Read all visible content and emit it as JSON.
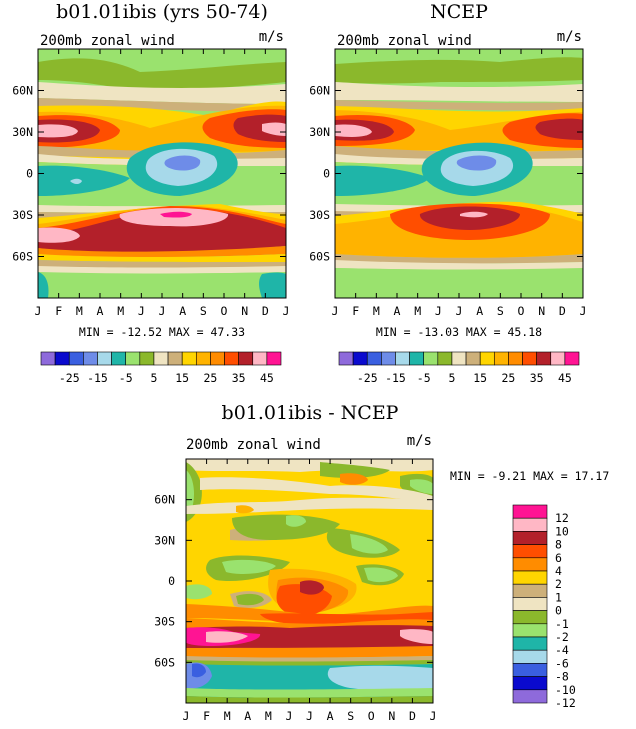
{
  "chart_data": [
    {
      "type": "heatmap",
      "title": "b01.01ibis (yrs 50-74)",
      "subtitle": "200mb zonal wind",
      "units": "m/s",
      "x_ticks": [
        "J",
        "F",
        "M",
        "A",
        "M",
        "J",
        "J",
        "A",
        "S",
        "O",
        "N",
        "D",
        "J"
      ],
      "y_ticks": [
        "60N",
        "30N",
        "0",
        "30S",
        "60S"
      ],
      "stats": "MIN = -12.52 MAX =  47.33",
      "colorbar": {
        "colors": [
          "#8E6ADB",
          "#0A0ACE",
          "#3A5FE0",
          "#6E8CE8",
          "#A7D9EA",
          "#1FB5A8",
          "#9AE26E",
          "#8BB82C",
          "#EFE4C2",
          "#CDB07A",
          "#FFD500",
          "#FFB300",
          "#FF8C00",
          "#FF4E00",
          "#B3202A",
          "#FFB7C5",
          "#FF1493"
        ],
        "labels": [
          "-25",
          "-15",
          "-5",
          "5",
          "15",
          "25",
          "35",
          "45"
        ]
      }
    },
    {
      "type": "heatmap",
      "title": "NCEP",
      "subtitle": "200mb zonal wind",
      "units": "m/s",
      "x_ticks": [
        "J",
        "F",
        "M",
        "A",
        "M",
        "J",
        "J",
        "A",
        "S",
        "O",
        "N",
        "D",
        "J"
      ],
      "y_ticks": [
        "60N",
        "30N",
        "0",
        "30S",
        "60S"
      ],
      "stats": "MIN = -13.03 MAX =  45.18",
      "colorbar": {
        "colors": [
          "#8E6ADB",
          "#0A0ACE",
          "#3A5FE0",
          "#6E8CE8",
          "#A7D9EA",
          "#1FB5A8",
          "#9AE26E",
          "#8BB82C",
          "#EFE4C2",
          "#CDB07A",
          "#FFD500",
          "#FFB300",
          "#FF8C00",
          "#FF4E00",
          "#B3202A",
          "#FFB7C5",
          "#FF1493"
        ],
        "labels": [
          "-25",
          "-15",
          "-5",
          "5",
          "15",
          "25",
          "35",
          "45"
        ]
      }
    },
    {
      "type": "heatmap",
      "title": "b01.01ibis - NCEP",
      "subtitle": "200mb zonal wind",
      "units": "m/s",
      "x_ticks": [
        "J",
        "F",
        "M",
        "A",
        "M",
        "J",
        "J",
        "A",
        "S",
        "O",
        "N",
        "D",
        "J"
      ],
      "y_ticks": [
        "60N",
        "30N",
        "0",
        "30S",
        "60S"
      ],
      "stats": "MIN =  -9.21 MAX =  17.17",
      "colorbar": {
        "colors": [
          "#FF1493",
          "#FFB7C5",
          "#B3202A",
          "#FF4E00",
          "#FF8C00",
          "#FFD500",
          "#CDB07A",
          "#EFE4C2",
          "#8BB82C",
          "#9AE26E",
          "#1FB5A8",
          "#A7D9EA",
          "#3A5FE0",
          "#0A0ACE",
          "#8E6ADB"
        ],
        "labels": [
          "12",
          "10",
          "8",
          "6",
          "4",
          "2",
          "1",
          "0",
          "-1",
          "-2",
          "-4",
          "-6",
          "-8",
          "-10",
          "-12"
        ]
      }
    }
  ]
}
